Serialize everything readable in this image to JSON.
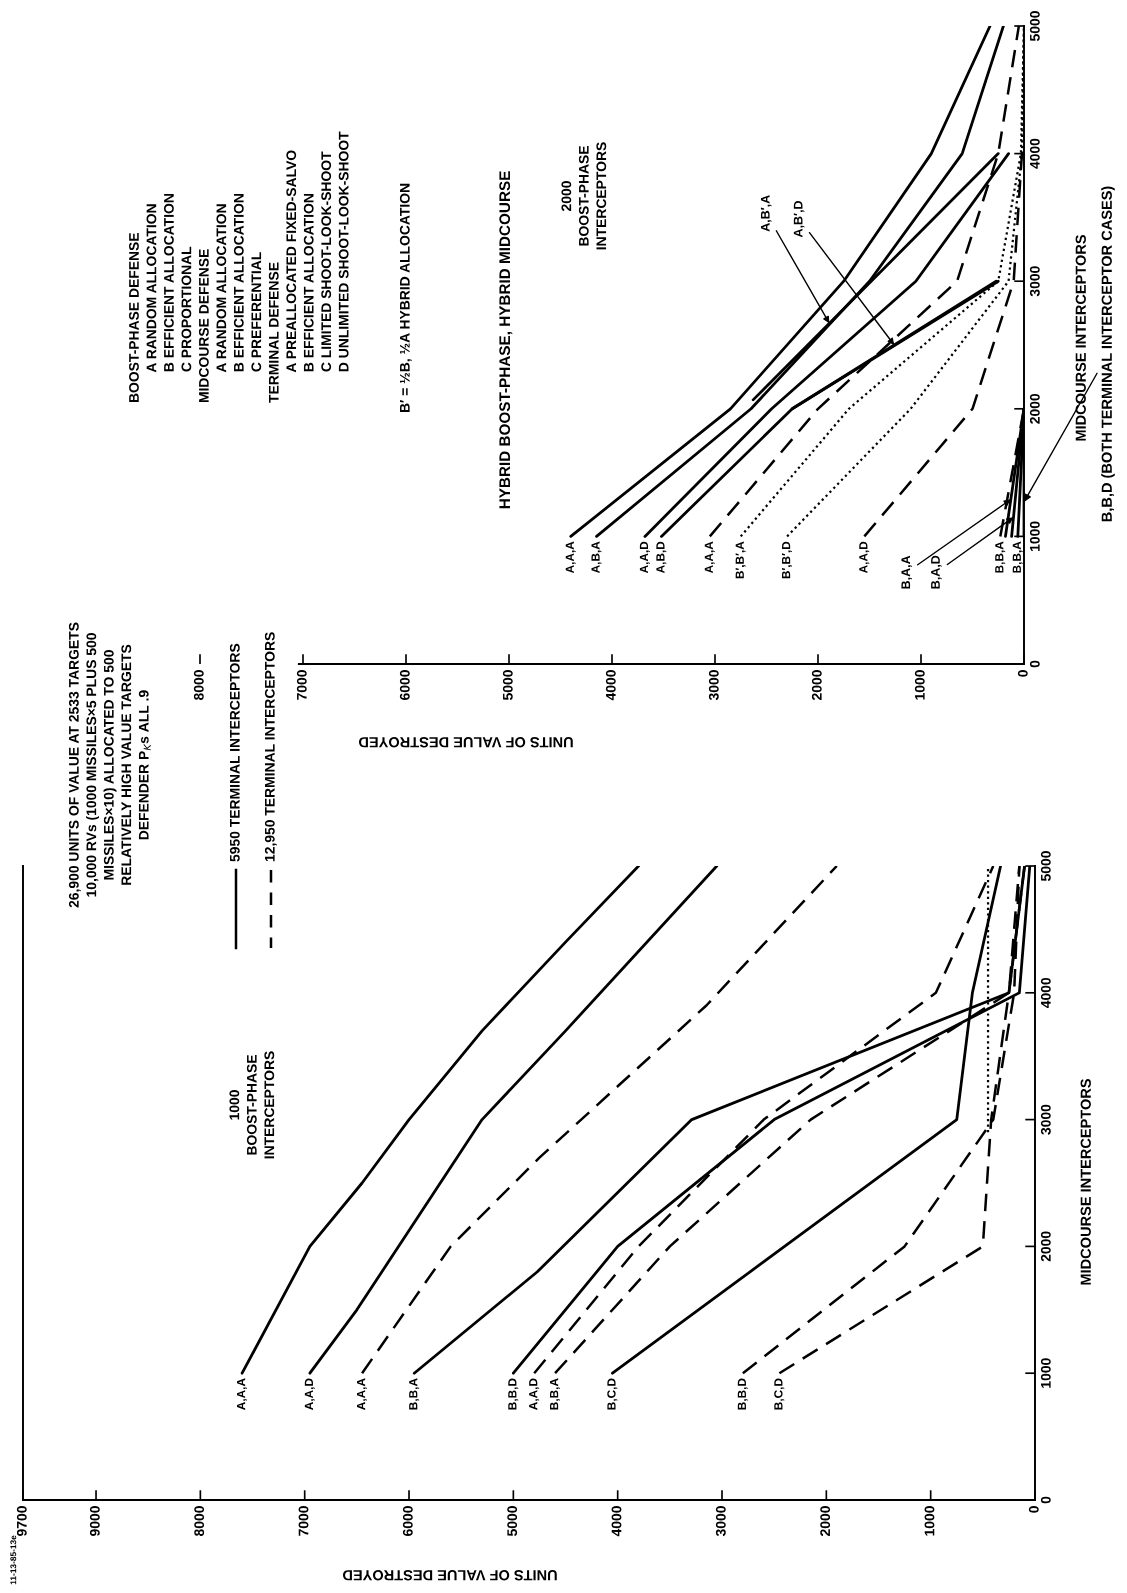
{
  "chart_data": [
    {
      "type": "line",
      "xlabel": "UNITS OF VALUE DESTROYED",
      "ylabel": "MIDCOURSE INTERCEPTORS",
      "xlim": [
        9700,
        0
      ],
      "xticks": [
        0,
        1000,
        2000,
        3000,
        4000,
        5000,
        6000,
        7000,
        8000,
        9000,
        9700
      ],
      "ylim": [
        0,
        5000
      ],
      "yticks": [
        0,
        1000,
        2000,
        3000,
        4000,
        5000
      ],
      "grid": false,
      "marker": "none",
      "series": [
        {
          "name": "A,A,A",
          "color": "#000000",
          "line_style": "solid",
          "x": [
            7600,
            6950,
            6450,
            6000,
            5300,
            4500,
            3800
          ],
          "values": [
            1000,
            2000,
            2500,
            3000,
            3700,
            4400,
            5000
          ]
        },
        {
          "name": "A,A,D",
          "color": "#000000",
          "line_style": "solid",
          "x": [
            6950,
            6500,
            5300,
            4500,
            3050
          ],
          "values": [
            1000,
            1500,
            3000,
            3700,
            5000
          ]
        },
        {
          "name": "A,A,A",
          "color": "#000000",
          "line_style": "dashed",
          "x": [
            6450,
            5600,
            4750,
            3150,
            1900
          ],
          "values": [
            1000,
            2000,
            2700,
            3900,
            5000
          ]
        },
        {
          "name": "B,B,A",
          "color": "#000000",
          "line_style": "solid",
          "x": [
            5950,
            4770,
            3290,
            250,
            100
          ],
          "values": [
            1000,
            1800,
            3000,
            4000,
            5000
          ]
        },
        {
          "name": "B,B,D",
          "color": "#000000",
          "line_style": "solid",
          "x": [
            5000,
            4000,
            2500,
            150,
            50
          ],
          "values": [
            1000,
            2000,
            3000,
            4000,
            5000
          ]
        },
        {
          "name": "A,A,D",
          "color": "#000000",
          "line_style": "dashed",
          "x": [
            4800,
            3800,
            2600,
            950,
            620,
            400
          ],
          "values": [
            1000,
            2000,
            3000,
            4000,
            4600,
            5000
          ]
        },
        {
          "name": "B,B,A",
          "color": "#000000",
          "line_style": "dashed",
          "x": [
            4600,
            3500,
            2150,
            250,
            150
          ],
          "values": [
            1000,
            2000,
            3000,
            4000,
            5000
          ]
        },
        {
          "name": "B,C,D",
          "color": "#000000",
          "line_style": "solid",
          "x": [
            4050,
            750,
            600,
            330
          ],
          "values": [
            1000,
            3000,
            4000,
            5000
          ]
        },
        {
          "name": "B,B,D",
          "color": "#000000",
          "line_style": "dashed",
          "x": [
            2800,
            1250,
            400,
            200,
            150
          ],
          "values": [
            1000,
            2000,
            3000,
            4000,
            5000
          ]
        },
        {
          "name": "B,C,D",
          "color": "#000000",
          "line_style": "dashed",
          "x": [
            2450,
            500,
            420,
            250,
            100
          ],
          "values": [
            1000,
            2000,
            3000,
            4000,
            5000
          ]
        },
        {
          "color": "#000000",
          "line_style": "dotted",
          "x": [
            450,
            450
          ],
          "values": [
            2900,
            5000
          ]
        }
      ],
      "annotations": [
        "26,900 UNITS OF VALUE AT 2533 TARGETS\n10,000 RVs (1000 MISSILES×5 PLUS 500\nMISSILES×10) ALLOCATED TO 500\nRELATIVELY HIGH VALUE TARGETS\nDEFENDER P$_{K}$s ALL .9",
        "1000\nBOOST-PHASE\nINTERCEPTORS",
        "5950 TERMINAL INTERCEPTORS",
        "12,950 TERMINAL INTERCEPTORS",
        "11-13-85-13e"
      ]
    },
    {
      "type": "line",
      "title": "HYBRID BOOST-PHASE, HYBRID MIDCOURSE",
      "xlabel": "UNITS OF VALUE DESTROYED",
      "ylabel": "MIDCOURSE INTERCEPTORS",
      "xlim": [
        8000,
        0
      ],
      "xticks": [
        0,
        1000,
        2000,
        3000,
        4000,
        5000,
        6000,
        7000,
        8000
      ],
      "ylim": [
        0,
        5000
      ],
      "yticks": [
        0,
        1000,
        2000,
        3000,
        4000,
        5000
      ],
      "grid": false,
      "marker": "none",
      "series": [
        {
          "name": "A,A,A",
          "color": "#000000",
          "line_style": "solid",
          "x": [
            4400,
            2850,
            1750,
            900,
            330
          ],
          "values": [
            1000,
            2000,
            3000,
            4000,
            5000
          ]
        },
        {
          "name": "A,B,A",
          "color": "#000000",
          "line_style": "solid",
          "x": [
            4150,
            2650,
            1500,
            600,
            200
          ],
          "values": [
            1000,
            2000,
            3000,
            4000,
            5000
          ]
        },
        {
          "name": "A,A,D",
          "color": "#000000",
          "line_style": "solid",
          "x": [
            3680,
            2450,
            1050,
            150
          ],
          "values": [
            1000,
            2000,
            3000,
            4000
          ]
        },
        {
          "name": "A,B,D",
          "color": "#000000",
          "line_style": "solid",
          "x": [
            3520,
            2250,
            250
          ],
          "values": [
            1000,
            2000,
            3000
          ]
        },
        {
          "name": "A,A,A",
          "color": "#000000",
          "line_style": "dashed",
          "x": [
            3050,
            2000,
            650,
            250,
            50
          ],
          "values": [
            1000,
            2000,
            3000,
            4000,
            5000
          ]
        },
        {
          "name": "B′,B′,A",
          "color": "#000000",
          "line_style": "dotted",
          "x": [
            2750,
            1700,
            250,
            30,
            0
          ],
          "values": [
            1000,
            2000,
            3000,
            4000,
            5000
          ]
        },
        {
          "name": "B′,B′,D",
          "color": "#000000",
          "line_style": "dotted",
          "x": [
            2300,
            1100,
            150,
            20,
            0
          ],
          "values": [
            1000,
            2000,
            3000,
            4000,
            5000
          ]
        },
        {
          "name": "A,A,D",
          "color": "#000000",
          "line_style": "dashed",
          "x": [
            1550,
            500,
            100,
            20
          ],
          "values": [
            1000,
            2000,
            3000,
            4000
          ]
        },
        {
          "color": "#000000",
          "line_style": "solid",
          "x": [
            180,
            0
          ],
          "values": [
            1000,
            2000
          ]
        },
        {
          "color": "#000000",
          "line_style": "solid",
          "x": [
            120,
            0
          ],
          "values": [
            1000,
            2000
          ]
        },
        {
          "name": "B,B,A",
          "color": "#000000",
          "line_style": "dashed",
          "x": [
            230,
            0
          ],
          "values": [
            1000,
            2000
          ]
        },
        {
          "name": "B,B,A",
          "color": "#000000",
          "line_style": "solid",
          "x": [
            60,
            0
          ],
          "values": [
            1000,
            2000
          ]
        },
        {
          "color": "#000000",
          "line_style": "solid",
          "x": [
            0,
            0
          ],
          "values": [
            1000,
            2000
          ]
        },
        {
          "color": "#000000",
          "line_style": "solid",
          "x": [
            2630,
            250
          ],
          "values": [
            2070,
            4000
          ]
        },
        {
          "color": "#000000",
          "line_style": "solid",
          "x": [
            2250,
            270
          ],
          "values": [
            2000,
            3000
          ]
        }
      ],
      "annotations": [
        "BOOST-PHASE DEFENSE\n        A RANDOM ALLOCATION\n        B EFFICIENT ALLOCATION\n        C PROPORTIONAL\nMIDCOURSE DEFENSE\n        A RANDOM ALLOCATION\n        B EFFICIENT ALLOCATION\n        C PREFERENTIAL\nTERMINAL DEFENSE\n        A PREALLOCATED FIXED-SALVO\n        B EFFICIENT ALLOCATION\n        C LIMITED SHOOT-LOOK-SHOOT\n        D UNLIMITED SHOOT-LOOK-SHOOT",
        "B′ = ½B, ½A HYBRID ALLOCATION",
        "2000\nBOOST-PHASE\nINTERCEPTORS",
        {
          "text": "A,B′,A",
          "x": 1890,
          "y": 2670
        },
        {
          "text": "A,B′,D",
          "x": 1260,
          "y": 2500
        },
        {
          "text": "B,A,A",
          "x": 128,
          "y": 1290
        },
        {
          "text": "B,A,D",
          "x": 102,
          "y": 1150
        },
        {
          "text": "B,B,D (BOTH TERMINAL INTERCEPTOR CASES)",
          "x": 0,
          "y": 1270
        }
      ]
    }
  ]
}
